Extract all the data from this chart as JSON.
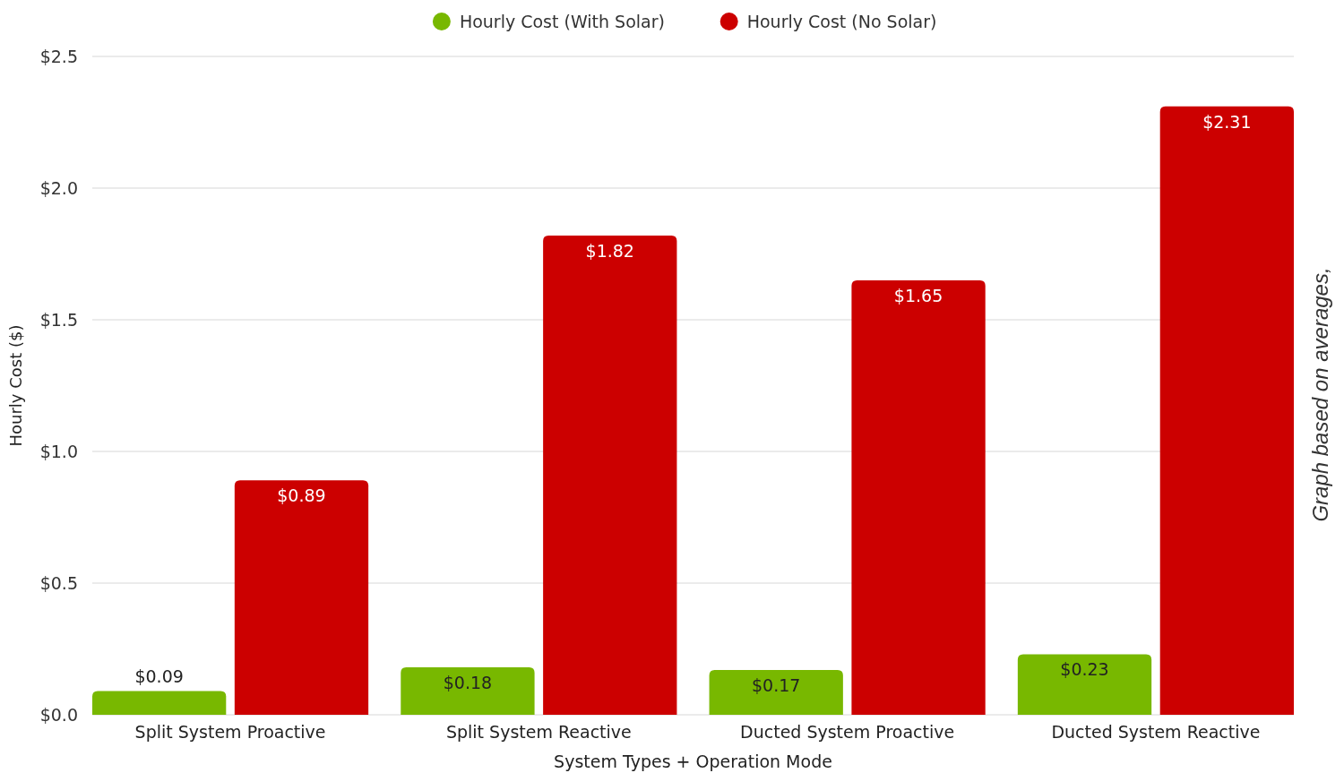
{
  "chart_data": {
    "type": "bar",
    "xlabel": "System Types + Operation Mode",
    "ylabel": "Hourly Cost ($)",
    "categories": [
      "Split System Proactive",
      "Split System Reactive",
      "Ducted System Proactive",
      "Ducted System Reactive"
    ],
    "series": [
      {
        "name": "Hourly Cost (With Solar)",
        "color": "#78b800",
        "values": [
          0.09,
          0.18,
          0.17,
          0.23
        ],
        "value_labels": [
          "$0.09",
          "$0.18",
          "$0.17",
          "$0.23"
        ]
      },
      {
        "name": "Hourly Cost (No Solar)",
        "color": "#cc0000",
        "values": [
          0.89,
          1.82,
          1.65,
          2.31
        ],
        "value_labels": [
          "$0.89",
          "$1.82",
          "$1.65",
          "$2.31"
        ]
      }
    ],
    "ylim": [
      0,
      2.5
    ],
    "yticks": [
      {
        "value": 0,
        "label": "$0.0"
      },
      {
        "value": 0.5,
        "label": "$0.5"
      },
      {
        "value": 1,
        "label": "$1.0"
      },
      {
        "value": 1.5,
        "label": "$1.5"
      },
      {
        "value": 2,
        "label": "$2.0"
      },
      {
        "value": 2.5,
        "label": "$2.5"
      }
    ],
    "grid": "y",
    "legend": "top",
    "annotations": [
      "Graph based on averages,"
    ]
  }
}
